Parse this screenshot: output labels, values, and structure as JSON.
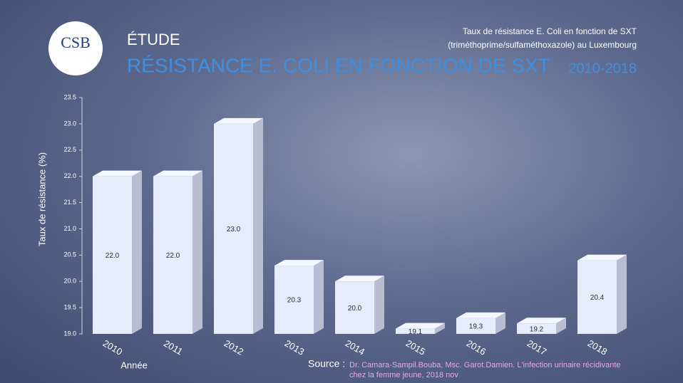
{
  "header": {
    "logo": "CSB",
    "kicker": "ÉTUDE",
    "title": "RÉSISTANCE E. COLI EN FONCTION DE SXT",
    "subtitle_lines": [
      "Taux de résistance E. Coli en fonction de SXT",
      "(triméthoprime/sulfaméthoxazole) au Luxembourg"
    ],
    "period": "2010-2018"
  },
  "chart_data": {
    "type": "bar",
    "y_label": "Taux de résistance (%)",
    "x_label": "Année",
    "categories": [
      "2010",
      "2011",
      "2012",
      "2013",
      "2014",
      "2015",
      "2016",
      "2017",
      "2018"
    ],
    "values": [
      22.0,
      22.0,
      23.0,
      20.3,
      20.0,
      19.1,
      19.3,
      19.2,
      20.4
    ],
    "value_labels": [
      "22.0",
      "22.0",
      "23.0",
      "20.3",
      "20.0",
      "19.1",
      "19.3",
      "19.2",
      "20.4"
    ],
    "color": "#e6ecfb",
    "ylim": [
      19,
      23.5
    ],
    "yticks": [
      {
        "value": 19,
        "label": "19.0"
      },
      19.5,
      {
        "value": 20,
        "label": "20.0"
      },
      20.5,
      {
        "value": 21,
        "label": "21.0"
      },
      21.5,
      {
        "value": 22,
        "label": "22.0"
      },
      22.5,
      {
        "value": 23,
        "label": "23.0"
      },
      23.5
    ]
  },
  "source": {
    "label": "Source :",
    "lines": [
      "Dr. Camara-Sampil.Bouba, Msc. Garot.Damien. L'infection urinaire récidivante",
      "chez la femme jeune, 2018 nov"
    ]
  }
}
